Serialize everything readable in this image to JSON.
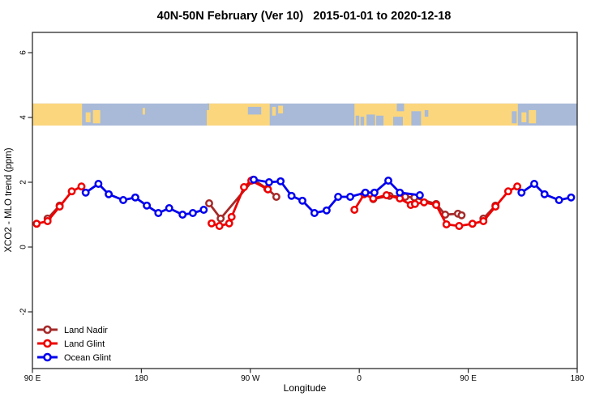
{
  "chart_data": {
    "type": "line",
    "title": "40N-50N February (Ver 10)   2015-01-01 to 2020-12-18",
    "xlabel": "Longitude",
    "ylabel": "XCO2 - MLO trend (ppm)",
    "x_axis": {
      "range": [
        90,
        540
      ],
      "note_units": "degrees east, wrapped past 180"
    },
    "y_axis": {
      "range": [
        -3.75,
        6.6
      ]
    },
    "x_ticks": [
      {
        "pos": 90,
        "label": "90 E"
      },
      {
        "pos": 180,
        "label": "180"
      },
      {
        "pos": 270,
        "label": "90 W"
      },
      {
        "pos": 360,
        "label": "0"
      },
      {
        "pos": 450,
        "label": "90 E"
      },
      {
        "pos": 540,
        "label": "180"
      }
    ],
    "y_ticks": [
      {
        "pos": -2,
        "label": "-2"
      },
      {
        "pos": 0,
        "label": "0"
      },
      {
        "pos": 2,
        "label": "2"
      },
      {
        "pos": 4,
        "label": "4"
      },
      {
        "pos": 6,
        "label": "6"
      }
    ],
    "series": [
      {
        "name": "Land Nadir",
        "color": "#a52a2a",
        "segments": [
          [
            [
              102.5,
              0.88
            ],
            [
              112.5,
              1.28
            ]
          ],
          [
            [
              236,
              1.35
            ],
            [
              245.5,
              0.88
            ],
            [
              272.5,
              2.08
            ],
            [
              284,
              1.8
            ],
            [
              291.5,
              1.55
            ]
          ],
          [
            [
              371.5,
              1.48
            ],
            [
              385,
              1.58
            ],
            [
              398,
              1.55
            ],
            [
              405.5,
              1.53
            ],
            [
              423.5,
              1.33
            ],
            [
              431,
              1.0
            ],
            [
              441.5,
              1.03
            ],
            [
              444.5,
              0.98
            ]
          ],
          [
            [
              462.5,
              0.88
            ],
            [
              472.5,
              1.28
            ]
          ]
        ]
      },
      {
        "name": "Land Glint",
        "color": "#ee0000",
        "segments": [
          [
            [
              93.5,
              0.72
            ],
            [
              102.5,
              0.8
            ],
            [
              112.5,
              1.25
            ],
            [
              122.5,
              1.72
            ],
            [
              130.5,
              1.87
            ]
          ],
          [
            [
              238,
              0.73
            ],
            [
              244.5,
              0.65
            ],
            [
              252.5,
              0.73
            ],
            [
              254.5,
              0.93
            ],
            [
              264.8,
              1.85
            ],
            [
              270.8,
              2.05
            ],
            [
              284.5,
              1.78
            ]
          ],
          [
            [
              356,
              1.15
            ],
            [
              364,
              1.63
            ],
            [
              371.5,
              1.5
            ],
            [
              382.5,
              1.6
            ],
            [
              393.5,
              1.5
            ],
            [
              402.5,
              1.3
            ],
            [
              406,
              1.33
            ],
            [
              413.5,
              1.38
            ],
            [
              423.5,
              1.3
            ],
            [
              432,
              0.7
            ],
            [
              442.5,
              0.65
            ],
            [
              453.5,
              0.72
            ],
            [
              462.5,
              0.8
            ],
            [
              472.5,
              1.25
            ],
            [
              483,
              1.72
            ],
            [
              490.5,
              1.87
            ]
          ]
        ]
      },
      {
        "name": "Ocean Glint",
        "color": "#0000ee",
        "segments": [
          [
            [
              134,
              1.68
            ],
            [
              144.5,
              1.95
            ],
            [
              153,
              1.63
            ],
            [
              165,
              1.45
            ],
            [
              175,
              1.53
            ],
            [
              184.5,
              1.28
            ],
            [
              194,
              1.05
            ],
            [
              203,
              1.2
            ],
            [
              214,
              1.0
            ],
            [
              222.5,
              1.05
            ],
            [
              231.5,
              1.15
            ]
          ],
          [
            [
              272.8,
              2.08
            ],
            [
              285.5,
              2.0
            ],
            [
              295,
              2.03
            ],
            [
              304,
              1.58
            ],
            [
              313,
              1.43
            ],
            [
              323,
              1.05
            ],
            [
              333,
              1.13
            ],
            [
              342.5,
              1.55
            ],
            [
              352.5,
              1.55
            ],
            [
              365,
              1.68
            ],
            [
              372.5,
              1.68
            ],
            [
              384,
              2.05
            ],
            [
              393.5,
              1.68
            ],
            [
              410,
              1.6
            ]
          ],
          [
            [
              494,
              1.68
            ],
            [
              504.5,
              1.95
            ],
            [
              513,
              1.63
            ],
            [
              525,
              1.45
            ],
            [
              535,
              1.53
            ]
          ]
        ]
      }
    ],
    "map_band": {
      "value_top": 4.43,
      "value_bottom": 3.75,
      "ocean_color": "#a8bad8",
      "land_color": "#fbd67d",
      "land": [
        {
          "from": 90,
          "to": 131
        },
        {
          "from": 234,
          "to": 286
        },
        {
          "from": 356,
          "to": 491
        }
      ],
      "islands": [
        {
          "from": 134,
          "to": 138,
          "t": 0.4,
          "b": 0.85
        },
        {
          "from": 140,
          "to": 146,
          "t": 0.3,
          "b": 0.9
        },
        {
          "from": 181,
          "to": 183,
          "t": 0.2,
          "b": 0.5
        },
        {
          "from": 288,
          "to": 291,
          "t": 0.15,
          "b": 0.55
        },
        {
          "from": 293,
          "to": 297,
          "t": 0.1,
          "b": 0.45
        },
        {
          "from": 494,
          "to": 498,
          "t": 0.4,
          "b": 0.85
        },
        {
          "from": 500,
          "to": 506,
          "t": 0.3,
          "b": 0.9
        }
      ],
      "water": [
        {
          "from": 234,
          "to": 236,
          "t": 0.0,
          "b": 0.3
        },
        {
          "from": 268,
          "to": 279,
          "t": 0.15,
          "b": 0.5
        },
        {
          "from": 357,
          "to": 360,
          "t": 0.55,
          "b": 1.0
        },
        {
          "from": 361,
          "to": 364,
          "t": 0.6,
          "b": 1.0
        },
        {
          "from": 366,
          "to": 373,
          "t": 0.5,
          "b": 1.0
        },
        {
          "from": 374,
          "to": 380,
          "t": 0.55,
          "b": 1.0
        },
        {
          "from": 391,
          "to": 397,
          "t": 0.0,
          "b": 0.35
        },
        {
          "from": 388,
          "to": 396,
          "t": 0.6,
          "b": 1.0
        },
        {
          "from": 403,
          "to": 411,
          "t": 0.35,
          "b": 1.0
        },
        {
          "from": 414,
          "to": 417,
          "t": 0.3,
          "b": 0.6
        },
        {
          "from": 486,
          "to": 490,
          "t": 0.35,
          "b": 0.9
        }
      ]
    }
  }
}
